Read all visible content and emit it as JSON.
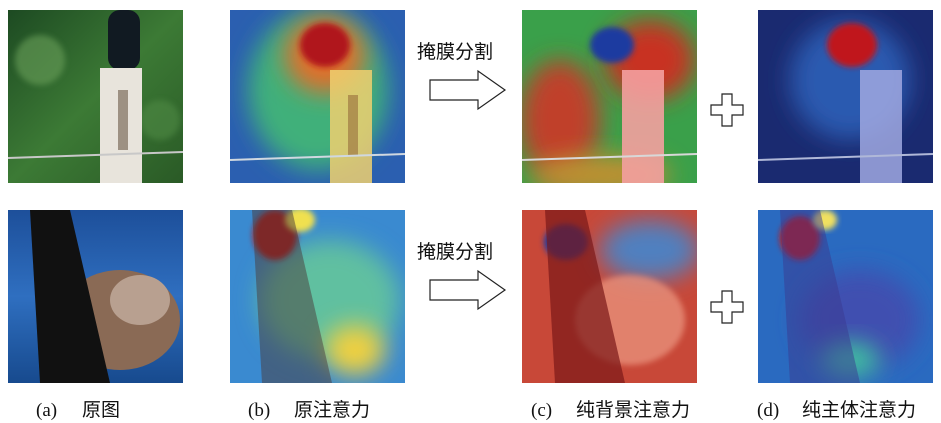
{
  "rows": [
    {
      "arrow_label": "掩膜分割"
    },
    {
      "arrow_label": "掩膜分割"
    }
  ],
  "captions": [
    {
      "label": "(a)",
      "text": "原图"
    },
    {
      "label": "(b)",
      "text": "原注意力"
    },
    {
      "label": "(c)",
      "text": "纯背景注意力"
    },
    {
      "label": "(d)",
      "text": "纯主体注意力"
    }
  ]
}
